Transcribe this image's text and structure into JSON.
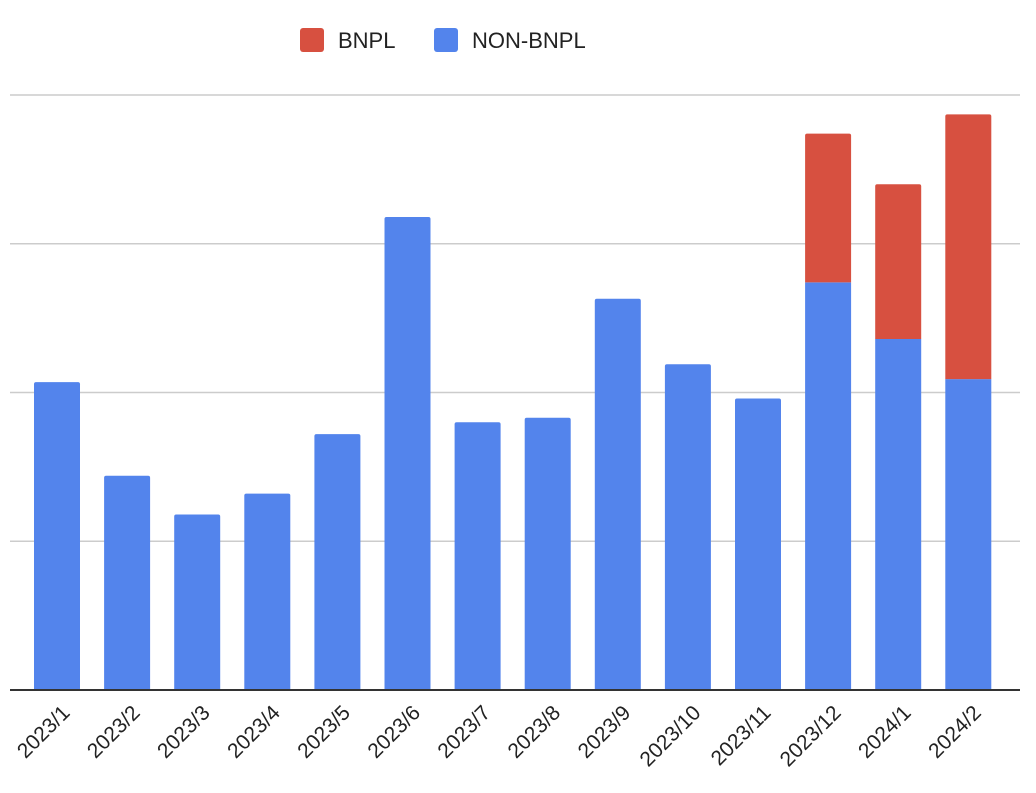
{
  "chart_data": {
    "type": "bar",
    "stacked": true,
    "title": "",
    "xlabel": "",
    "ylabel": "",
    "ylim": [
      0,
      4
    ],
    "gridlines": [
      0,
      1,
      2,
      3,
      4
    ],
    "grid": true,
    "legend_position": "top",
    "categories": [
      "2023/1",
      "2023/2",
      "2023/3",
      "2023/4",
      "2023/5",
      "2023/6",
      "2023/7",
      "2023/8",
      "2023/9",
      "2023/10",
      "2023/11",
      "2023/12",
      "2024/1",
      "2024/2"
    ],
    "series": [
      {
        "name": "NON-BNPL",
        "color": "#5384ec",
        "values": [
          2.07,
          1.44,
          1.18,
          1.32,
          1.72,
          3.18,
          1.8,
          1.83,
          2.63,
          2.19,
          1.96,
          2.74,
          2.36,
          2.09
        ]
      },
      {
        "name": "BNPL",
        "color": "#d75040",
        "values": [
          0,
          0,
          0,
          0,
          0,
          0,
          0,
          0,
          0,
          0,
          0,
          1.0,
          1.04,
          1.78
        ]
      }
    ]
  }
}
